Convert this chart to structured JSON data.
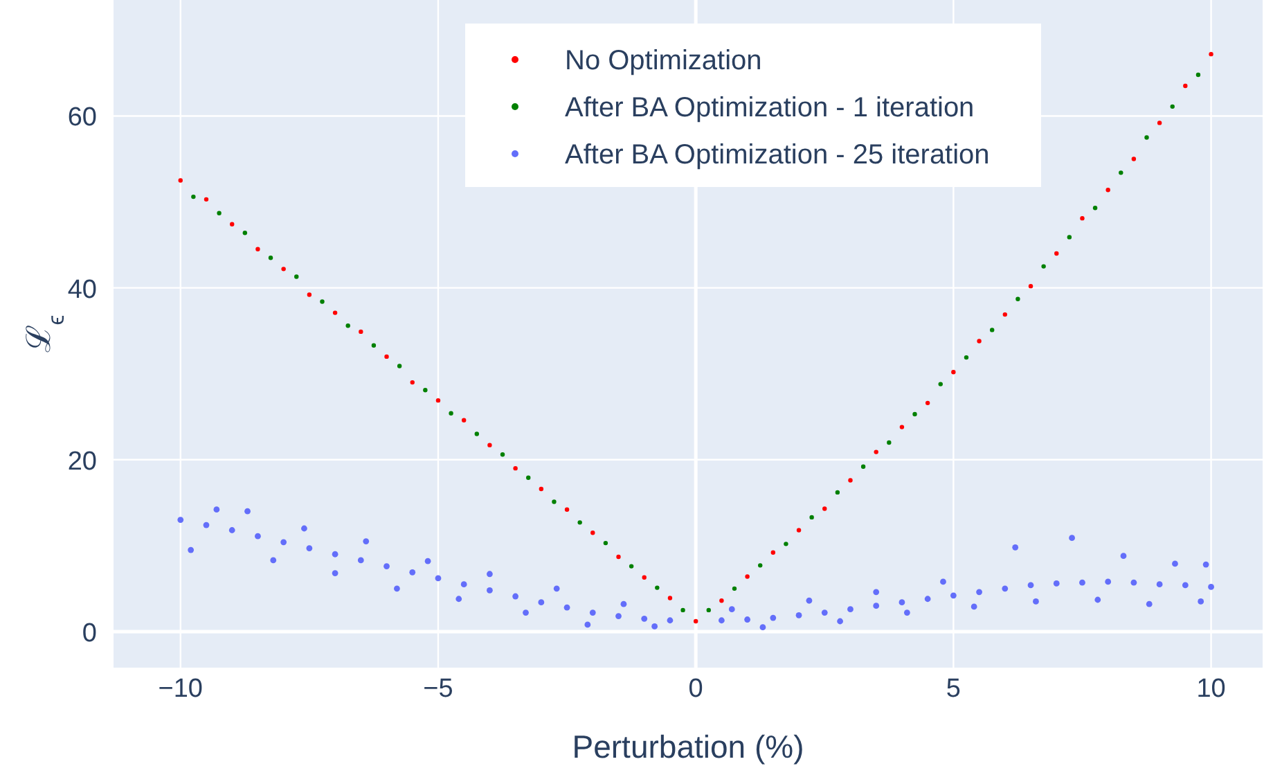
{
  "chart_data": {
    "type": "scatter",
    "xlabel": "Perturbation (%)",
    "ylabel": "ℒ$_{ϵ}$",
    "xlim": [
      -11.3,
      11.0
    ],
    "ylim": [
      -4.2,
      73.5
    ],
    "xticks": [
      {
        "value": -10,
        "label": "−10"
      },
      {
        "value": -5,
        "label": "−5"
      },
      0,
      5,
      10
    ],
    "yticks": [
      0,
      20,
      40,
      60
    ],
    "grid": true,
    "legend": "top",
    "marker": "circle",
    "series": [
      {
        "name": "No Optimization",
        "color": "#ff0000",
        "x": [
          -10,
          -9.5,
          -9,
          -8.5,
          -8,
          -7.5,
          -7,
          -6.5,
          -6,
          -5.5,
          -5,
          -4.5,
          -4,
          -3.5,
          -3,
          -2.5,
          -2,
          -1.5,
          -1,
          -0.5,
          0,
          0.5,
          1,
          1.5,
          2,
          2.5,
          3,
          3.5,
          4,
          4.5,
          5,
          5.5,
          6,
          6.5,
          7,
          7.5,
          8,
          8.5,
          9,
          9.5,
          10
        ],
        "values": [
          52.5,
          50.3,
          47.4,
          44.5,
          42.2,
          39.2,
          37.1,
          34.9,
          32.0,
          29.0,
          26.9,
          24.6,
          21.7,
          19.0,
          16.6,
          14.2,
          11.5,
          8.7,
          6.3,
          3.9,
          1.2,
          3.6,
          6.4,
          9.2,
          11.8,
          14.3,
          17.6,
          20.9,
          23.8,
          26.6,
          30.2,
          33.8,
          36.9,
          40.2,
          44.0,
          48.1,
          51.4,
          55.0,
          59.2,
          63.5,
          67.2
        ]
      },
      {
        "name": "After BA Optimization - 1 iteration",
        "color": "#008000",
        "x": [
          -9.75,
          -9.25,
          -8.75,
          -8.25,
          -7.75,
          -7.25,
          -6.75,
          -6.25,
          -5.75,
          -5.25,
          -4.75,
          -4.25,
          -3.75,
          -3.25,
          -2.75,
          -2.25,
          -1.75,
          -1.25,
          -0.75,
          -0.25,
          0.25,
          0.75,
          1.25,
          1.75,
          2.25,
          2.75,
          3.25,
          3.75,
          4.25,
          4.75,
          5.25,
          5.75,
          6.25,
          6.75,
          7.25,
          7.75,
          8.25,
          8.75,
          9.25,
          9.75
        ],
        "values": [
          50.6,
          48.7,
          46.4,
          43.5,
          41.3,
          38.4,
          35.6,
          33.3,
          30.9,
          28.1,
          25.4,
          23.0,
          20.6,
          17.9,
          15.1,
          12.7,
          10.3,
          7.6,
          5.1,
          2.5,
          2.5,
          5.0,
          7.7,
          10.2,
          13.3,
          16.2,
          19.2,
          22.0,
          25.3,
          28.8,
          31.9,
          35.1,
          38.7,
          42.5,
          45.9,
          49.3,
          53.4,
          57.5,
          61.1,
          64.8
        ]
      },
      {
        "name": "After BA Optimization - 25 iteration",
        "color": "#636efa",
        "x": [
          -10,
          -9.5,
          -9,
          -8.5,
          -8,
          -7.5,
          -7,
          -6.5,
          -6,
          -5.5,
          -5,
          -4.5,
          -4,
          -3.5,
          -3,
          -2.5,
          -2,
          -1.5,
          -1,
          -0.5,
          0.5,
          1,
          1.5,
          2,
          2.5,
          3,
          3.5,
          4,
          4.5,
          5,
          5.5,
          6,
          6.5,
          7,
          7.5,
          8,
          8.5,
          9,
          9.5,
          10,
          -9.8,
          -9.3,
          -8.7,
          -8.2,
          -7.6,
          -7,
          -6.4,
          -5.8,
          -5.2,
          -4.6,
          -4,
          -3.3,
          -2.7,
          -2.1,
          -1.4,
          -0.8,
          0.7,
          1.3,
          2.2,
          2.8,
          3.5,
          4.1,
          4.8,
          5.4,
          6.2,
          6.6,
          7.3,
          7.8,
          8.3,
          8.8,
          9.3,
          9.8,
          9.9
        ],
        "values": [
          13,
          12.4,
          11.8,
          11.1,
          10.4,
          9.7,
          9.0,
          8.3,
          7.6,
          6.9,
          6.2,
          5.5,
          4.8,
          4.1,
          3.4,
          2.8,
          2.2,
          1.8,
          1.5,
          1.3,
          1.3,
          1.4,
          1.6,
          1.9,
          2.2,
          2.6,
          3.0,
          3.4,
          3.8,
          4.2,
          4.6,
          5.0,
          5.4,
          5.6,
          5.7,
          5.8,
          5.7,
          5.5,
          5.4,
          5.2,
          9.5,
          14.2,
          14,
          8.3,
          12,
          6.8,
          10.5,
          5,
          8.2,
          3.8,
          6.7,
          2.2,
          5,
          0.8,
          3.2,
          0.6,
          2.6,
          0.5,
          3.6,
          1.2,
          4.6,
          2.2,
          5.8,
          2.9,
          9.8,
          3.5,
          10.9,
          3.7,
          8.8,
          3.2,
          7.9,
          3.5,
          7.8
        ]
      }
    ]
  }
}
